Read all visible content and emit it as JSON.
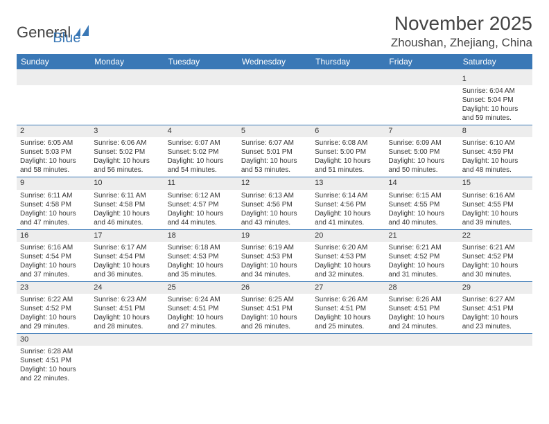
{
  "brand": {
    "general": "General",
    "blue": "Blue"
  },
  "header": {
    "title": "November 2025",
    "subtitle": "Zhoushan, Zhejiang, China"
  },
  "colors": {
    "header_bg": "#3a78b6",
    "band_bg": "#ededed",
    "text": "#333333",
    "divider": "#3a78b6"
  },
  "calendar": {
    "day_labels": [
      "Sunday",
      "Monday",
      "Tuesday",
      "Wednesday",
      "Thursday",
      "Friday",
      "Saturday"
    ],
    "typography": {
      "day_label_fontsize": 12,
      "cell_fontsize": 10,
      "daynum_fontsize": 11
    },
    "weeks": [
      [
        {
          "n": "",
          "empty": true
        },
        {
          "n": "",
          "empty": true
        },
        {
          "n": "",
          "empty": true
        },
        {
          "n": "",
          "empty": true
        },
        {
          "n": "",
          "empty": true
        },
        {
          "n": "",
          "empty": true
        },
        {
          "n": "1",
          "sr": "Sunrise: 6:04 AM",
          "ss": "Sunset: 5:04 PM",
          "d1": "Daylight: 10 hours",
          "d2": "and 59 minutes."
        }
      ],
      [
        {
          "n": "2",
          "sr": "Sunrise: 6:05 AM",
          "ss": "Sunset: 5:03 PM",
          "d1": "Daylight: 10 hours",
          "d2": "and 58 minutes."
        },
        {
          "n": "3",
          "sr": "Sunrise: 6:06 AM",
          "ss": "Sunset: 5:02 PM",
          "d1": "Daylight: 10 hours",
          "d2": "and 56 minutes."
        },
        {
          "n": "4",
          "sr": "Sunrise: 6:07 AM",
          "ss": "Sunset: 5:02 PM",
          "d1": "Daylight: 10 hours",
          "d2": "and 54 minutes."
        },
        {
          "n": "5",
          "sr": "Sunrise: 6:07 AM",
          "ss": "Sunset: 5:01 PM",
          "d1": "Daylight: 10 hours",
          "d2": "and 53 minutes."
        },
        {
          "n": "6",
          "sr": "Sunrise: 6:08 AM",
          "ss": "Sunset: 5:00 PM",
          "d1": "Daylight: 10 hours",
          "d2": "and 51 minutes."
        },
        {
          "n": "7",
          "sr": "Sunrise: 6:09 AM",
          "ss": "Sunset: 5:00 PM",
          "d1": "Daylight: 10 hours",
          "d2": "and 50 minutes."
        },
        {
          "n": "8",
          "sr": "Sunrise: 6:10 AM",
          "ss": "Sunset: 4:59 PM",
          "d1": "Daylight: 10 hours",
          "d2": "and 48 minutes."
        }
      ],
      [
        {
          "n": "9",
          "sr": "Sunrise: 6:11 AM",
          "ss": "Sunset: 4:58 PM",
          "d1": "Daylight: 10 hours",
          "d2": "and 47 minutes."
        },
        {
          "n": "10",
          "sr": "Sunrise: 6:11 AM",
          "ss": "Sunset: 4:58 PM",
          "d1": "Daylight: 10 hours",
          "d2": "and 46 minutes."
        },
        {
          "n": "11",
          "sr": "Sunrise: 6:12 AM",
          "ss": "Sunset: 4:57 PM",
          "d1": "Daylight: 10 hours",
          "d2": "and 44 minutes."
        },
        {
          "n": "12",
          "sr": "Sunrise: 6:13 AM",
          "ss": "Sunset: 4:56 PM",
          "d1": "Daylight: 10 hours",
          "d2": "and 43 minutes."
        },
        {
          "n": "13",
          "sr": "Sunrise: 6:14 AM",
          "ss": "Sunset: 4:56 PM",
          "d1": "Daylight: 10 hours",
          "d2": "and 41 minutes."
        },
        {
          "n": "14",
          "sr": "Sunrise: 6:15 AM",
          "ss": "Sunset: 4:55 PM",
          "d1": "Daylight: 10 hours",
          "d2": "and 40 minutes."
        },
        {
          "n": "15",
          "sr": "Sunrise: 6:16 AM",
          "ss": "Sunset: 4:55 PM",
          "d1": "Daylight: 10 hours",
          "d2": "and 39 minutes."
        }
      ],
      [
        {
          "n": "16",
          "sr": "Sunrise: 6:16 AM",
          "ss": "Sunset: 4:54 PM",
          "d1": "Daylight: 10 hours",
          "d2": "and 37 minutes."
        },
        {
          "n": "17",
          "sr": "Sunrise: 6:17 AM",
          "ss": "Sunset: 4:54 PM",
          "d1": "Daylight: 10 hours",
          "d2": "and 36 minutes."
        },
        {
          "n": "18",
          "sr": "Sunrise: 6:18 AM",
          "ss": "Sunset: 4:53 PM",
          "d1": "Daylight: 10 hours",
          "d2": "and 35 minutes."
        },
        {
          "n": "19",
          "sr": "Sunrise: 6:19 AM",
          "ss": "Sunset: 4:53 PM",
          "d1": "Daylight: 10 hours",
          "d2": "and 34 minutes."
        },
        {
          "n": "20",
          "sr": "Sunrise: 6:20 AM",
          "ss": "Sunset: 4:53 PM",
          "d1": "Daylight: 10 hours",
          "d2": "and 32 minutes."
        },
        {
          "n": "21",
          "sr": "Sunrise: 6:21 AM",
          "ss": "Sunset: 4:52 PM",
          "d1": "Daylight: 10 hours",
          "d2": "and 31 minutes."
        },
        {
          "n": "22",
          "sr": "Sunrise: 6:21 AM",
          "ss": "Sunset: 4:52 PM",
          "d1": "Daylight: 10 hours",
          "d2": "and 30 minutes."
        }
      ],
      [
        {
          "n": "23",
          "sr": "Sunrise: 6:22 AM",
          "ss": "Sunset: 4:52 PM",
          "d1": "Daylight: 10 hours",
          "d2": "and 29 minutes."
        },
        {
          "n": "24",
          "sr": "Sunrise: 6:23 AM",
          "ss": "Sunset: 4:51 PM",
          "d1": "Daylight: 10 hours",
          "d2": "and 28 minutes."
        },
        {
          "n": "25",
          "sr": "Sunrise: 6:24 AM",
          "ss": "Sunset: 4:51 PM",
          "d1": "Daylight: 10 hours",
          "d2": "and 27 minutes."
        },
        {
          "n": "26",
          "sr": "Sunrise: 6:25 AM",
          "ss": "Sunset: 4:51 PM",
          "d1": "Daylight: 10 hours",
          "d2": "and 26 minutes."
        },
        {
          "n": "27",
          "sr": "Sunrise: 6:26 AM",
          "ss": "Sunset: 4:51 PM",
          "d1": "Daylight: 10 hours",
          "d2": "and 25 minutes."
        },
        {
          "n": "28",
          "sr": "Sunrise: 6:26 AM",
          "ss": "Sunset: 4:51 PM",
          "d1": "Daylight: 10 hours",
          "d2": "and 24 minutes."
        },
        {
          "n": "29",
          "sr": "Sunrise: 6:27 AM",
          "ss": "Sunset: 4:51 PM",
          "d1": "Daylight: 10 hours",
          "d2": "and 23 minutes."
        }
      ],
      [
        {
          "n": "30",
          "sr": "Sunrise: 6:28 AM",
          "ss": "Sunset: 4:51 PM",
          "d1": "Daylight: 10 hours",
          "d2": "and 22 minutes."
        },
        {
          "n": "",
          "empty": true
        },
        {
          "n": "",
          "empty": true
        },
        {
          "n": "",
          "empty": true
        },
        {
          "n": "",
          "empty": true
        },
        {
          "n": "",
          "empty": true
        },
        {
          "n": "",
          "empty": true
        }
      ]
    ]
  }
}
